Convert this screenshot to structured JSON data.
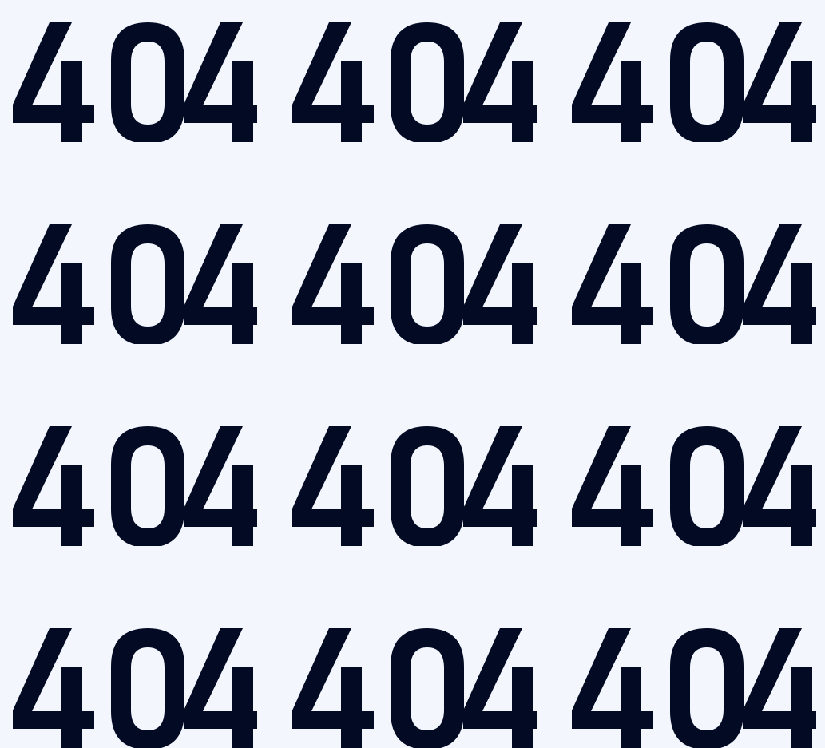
{
  "page": {
    "background_color": "#f3f6fd",
    "text_color": "#020a24"
  },
  "grid": {
    "rows": 4,
    "columns": 3,
    "cells": [
      "404",
      "404",
      "404",
      "404",
      "404",
      "404",
      "404",
      "404",
      "404",
      "404",
      "404",
      "404"
    ]
  }
}
